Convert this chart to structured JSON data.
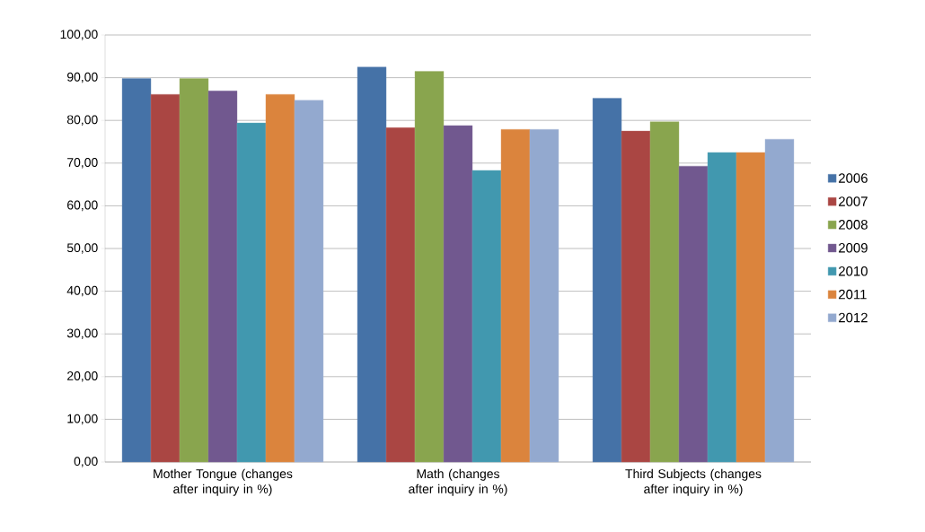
{
  "chart_data": {
    "type": "bar",
    "categories": [
      "Mother Tongue (changes after inquiry in %)",
      "Math (changes after inquiry  in %)",
      "Third Subjects (changes after inquiry  in %)"
    ],
    "series": [
      {
        "name": "2006",
        "color": "#4572a7",
        "values": [
          89.8,
          92.5,
          85.2
        ]
      },
      {
        "name": "2007",
        "color": "#aa4643",
        "values": [
          86.1,
          78.3,
          77.5
        ]
      },
      {
        "name": "2008",
        "color": "#89a54e",
        "values": [
          89.8,
          91.5,
          79.7
        ]
      },
      {
        "name": "2009",
        "color": "#71588f",
        "values": [
          86.9,
          78.8,
          69.3
        ]
      },
      {
        "name": "2010",
        "color": "#4198af",
        "values": [
          79.4,
          68.3,
          72.5
        ]
      },
      {
        "name": "2011",
        "color": "#db843d",
        "values": [
          86.1,
          77.9,
          72.5
        ]
      },
      {
        "name": "2012",
        "color": "#93a9cf",
        "values": [
          84.7,
          77.9,
          75.6
        ]
      }
    ],
    "ylim": [
      0,
      100
    ],
    "yticks": [
      {
        "value": 0,
        "label": "0,00"
      },
      {
        "value": 10,
        "label": "10,00"
      },
      {
        "value": 20,
        "label": "20,00"
      },
      {
        "value": 30,
        "label": "30,00"
      },
      {
        "value": 40,
        "label": "40,00"
      },
      {
        "value": 50,
        "label": "50,00"
      },
      {
        "value": 60,
        "label": "60,00"
      },
      {
        "value": 70,
        "label": "70,00"
      },
      {
        "value": 80,
        "label": "80,00"
      },
      {
        "value": 90,
        "label": "90,00"
      },
      {
        "value": 100,
        "label": "100,00"
      }
    ],
    "grid": "y",
    "legend": "right"
  }
}
